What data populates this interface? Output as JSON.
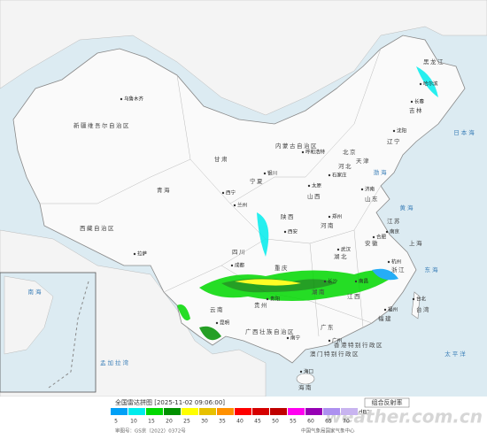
{
  "map": {
    "regions": [
      "新疆维吾尔自治区",
      "西藏自治区",
      "青海",
      "甘肃",
      "内蒙古自治区",
      "黑龙江",
      "吉林",
      "辽宁",
      "河北",
      "山西",
      "山东",
      "河南",
      "陕西",
      "宁夏",
      "四川",
      "重庆",
      "湖北",
      "湖南",
      "江苏",
      "安徽",
      "浙江",
      "江西",
      "福建",
      "台湾",
      "贵州",
      "云南",
      "广西壮族自治区",
      "广东",
      "海南",
      "上海",
      "北京",
      "天津",
      "香港特别行政区",
      "澳门特别行政区"
    ],
    "cities": [
      "乌鲁木齐",
      "拉萨",
      "西宁",
      "兰州",
      "呼和浩特",
      "银川",
      "哈尔滨",
      "长春",
      "沈阳",
      "石家庄",
      "太原",
      "济南",
      "郑州",
      "西安",
      "成都",
      "武汉",
      "长沙",
      "南昌",
      "合肥",
      "南京",
      "杭州",
      "福州",
      "台北",
      "广州",
      "南宁",
      "海口",
      "贵阳",
      "昆明"
    ],
    "seas": [
      "渤海",
      "黄海",
      "东海",
      "日本海",
      "太平洋",
      "孟加拉湾",
      "南海"
    ]
  },
  "legend": {
    "title": "全国雷达拼图 [2025-11-02 09:06:00]",
    "product": "组合反射率",
    "unit": "dBZ",
    "ticks": [
      5,
      10,
      15,
      20,
      25,
      30,
      35,
      40,
      45,
      50,
      55,
      60,
      65,
      70
    ],
    "colors": [
      "#01a0f6",
      "#00ecec",
      "#00d800",
      "#019000",
      "#ffff00",
      "#e7c000",
      "#ff9000",
      "#ff0000",
      "#d60000",
      "#c00000",
      "#ff00f0",
      "#9600b4",
      "#ad90f0",
      "#c8b4f0"
    ]
  },
  "footer": {
    "approval": "审图号：GS京（2022）0372号",
    "source": "中国气象局国家气象中心"
  },
  "watermark": "weather.com.cn"
}
